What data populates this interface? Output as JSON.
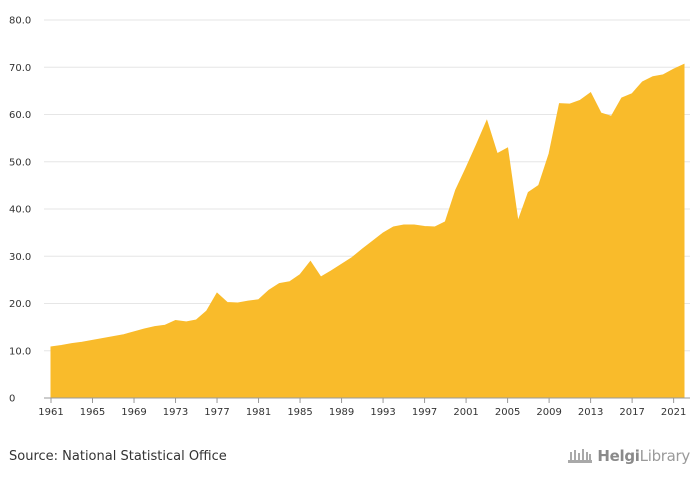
{
  "chart_data": {
    "type": "area",
    "title": "",
    "xlabel": "",
    "ylabel": "",
    "ylim": [
      0,
      80
    ],
    "y_ticks": [
      "0",
      "10.0",
      "20.0",
      "30.0",
      "40.0",
      "50.0",
      "60.0",
      "70.0",
      "80.0"
    ],
    "x_ticks": [
      "1961",
      "1965",
      "1969",
      "1973",
      "1977",
      "1981",
      "1985",
      "1989",
      "1993",
      "1997",
      "2001",
      "2005",
      "2009",
      "2013",
      "2017",
      "2021"
    ],
    "grid": true,
    "fill_color": "#f9bb2b",
    "x": [
      1961,
      1962,
      1963,
      1964,
      1965,
      1966,
      1967,
      1968,
      1969,
      1970,
      1971,
      1972,
      1973,
      1974,
      1975,
      1976,
      1977,
      1978,
      1979,
      1980,
      1981,
      1982,
      1983,
      1984,
      1985,
      1986,
      1987,
      1988,
      1989,
      1990,
      1991,
      1992,
      1993,
      1994,
      1995,
      1996,
      1997,
      1998,
      1999,
      2000,
      2001,
      2002,
      2003,
      2004,
      2005,
      2006,
      2007,
      2008,
      2009,
      2010,
      2011,
      2012,
      2013,
      2014,
      2015,
      2016,
      2017,
      2018,
      2019,
      2020,
      2021,
      2022
    ],
    "values": [
      10.8,
      11.1,
      11.5,
      11.8,
      12.2,
      12.6,
      13.0,
      13.4,
      14.0,
      14.6,
      15.1,
      15.4,
      16.4,
      16.1,
      16.5,
      18.4,
      22.2,
      20.2,
      20.1,
      20.5,
      20.8,
      22.8,
      24.2,
      24.6,
      26.1,
      28.9,
      25.6,
      26.9,
      28.3,
      29.7,
      31.5,
      33.2,
      34.9,
      36.2,
      36.6,
      36.6,
      36.3,
      36.2,
      37.3,
      44.0,
      48.7,
      53.6,
      58.7,
      51.7,
      52.9,
      37.4,
      43.5,
      45.0,
      51.7,
      62.3,
      62.2,
      63.0,
      64.6,
      60.3,
      59.6,
      63.5,
      64.4,
      66.9,
      68.0,
      68.4,
      69.6,
      70.6
    ]
  },
  "footer": {
    "source": "Source: National Statistical Office",
    "logo_text_bold": "Helgi",
    "logo_text_light": "Library"
  }
}
